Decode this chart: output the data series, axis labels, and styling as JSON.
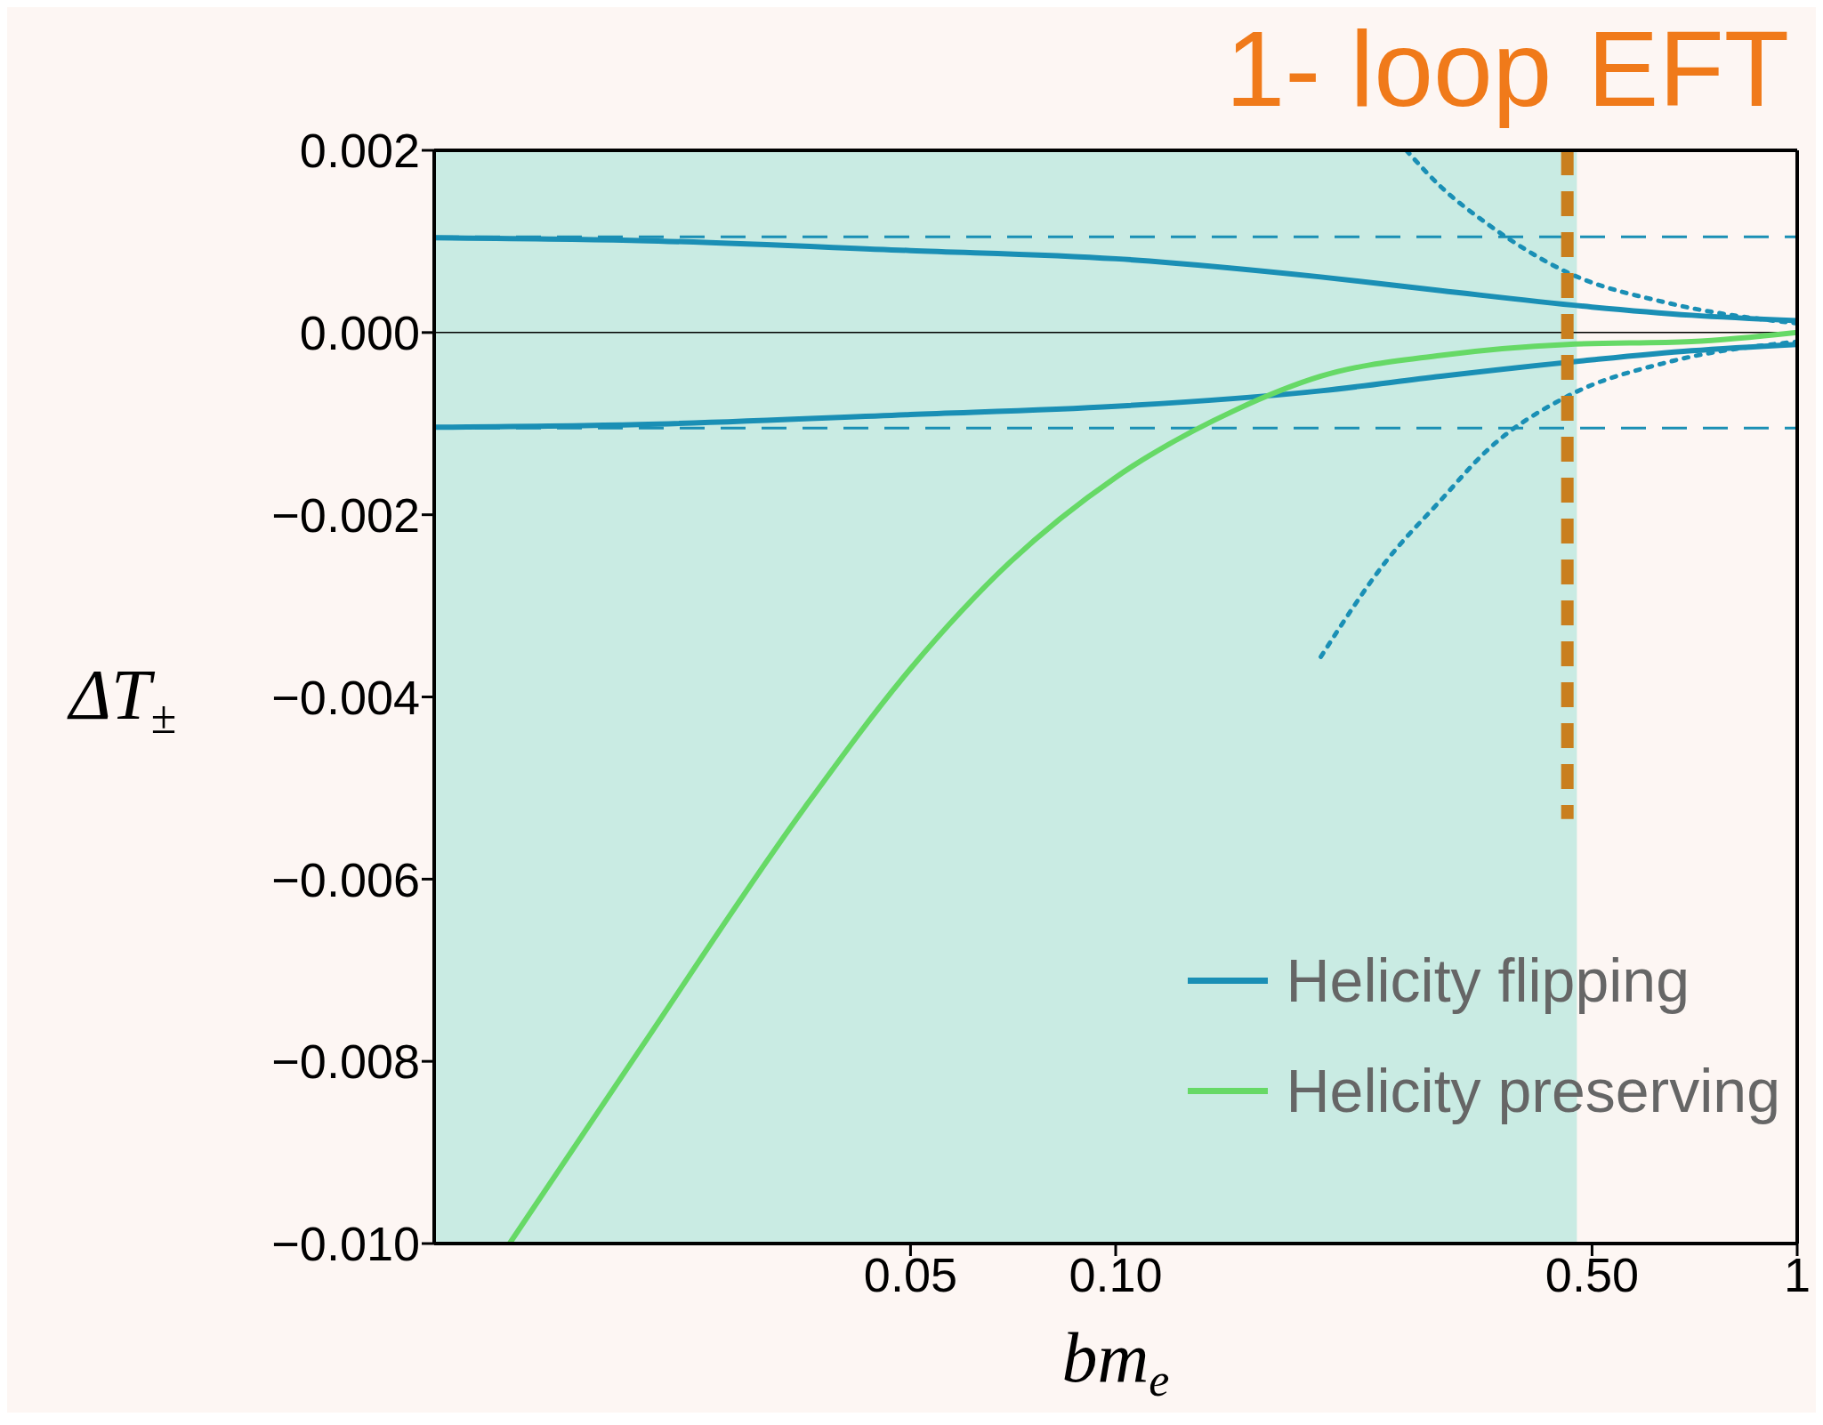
{
  "chart_data": {
    "type": "line",
    "xlabel": "bm$_{e}$",
    "ylabel": "ΔT$_{±}$",
    "annotations": [
      "1- loop",
      "EFT"
    ],
    "log": "x",
    "xlim": [
      0.01,
      1
    ],
    "ylim": [
      -0.01,
      0.002
    ],
    "xticks": [
      {
        "value": 0.05,
        "label": "0.05"
      },
      {
        "value": 0.1,
        "label": "0.10"
      },
      {
        "value": 0.5,
        "label": "0.50"
      },
      {
        "value": 1,
        "label": "1"
      }
    ],
    "yticks": [
      {
        "value": 0.002,
        "label": "0.002"
      },
      {
        "value": 0,
        "label": "0.000"
      },
      {
        "value": -0.002,
        "label": "−0.002"
      },
      {
        "value": -0.004,
        "label": "−0.004"
      },
      {
        "value": -0.006,
        "label": "−0.006"
      },
      {
        "value": -0.008,
        "label": "−0.008"
      },
      {
        "value": -0.01,
        "label": "−0.010"
      }
    ],
    "legend": "bottom right",
    "marker": "none",
    "bands": [
      {
        "axis": "x",
        "from": 0.01,
        "to": 0.475,
        "color": "#c9ebe3"
      }
    ],
    "ref_lines": [
      {
        "axis": "y",
        "value": 0.00105,
        "color": "#1a8fb5",
        "line_style": "dashed"
      },
      {
        "axis": "y",
        "value": -0.00105,
        "color": "#1a8fb5",
        "line_style": "dashed"
      },
      {
        "axis": "y",
        "value": 0,
        "color": "#000000",
        "line_style": "solid"
      }
    ],
    "series": [
      {
        "name": "Helicity flipping",
        "color": "#1a8fb5",
        "line_style": "solid",
        "x": [
          0.01,
          0.02,
          0.05,
          0.1,
          0.2,
          0.3,
          0.5,
          0.7,
          1
        ],
        "values": [
          0.00104,
          0.00101,
          0.0009,
          0.00081,
          0.00061,
          0.00046,
          0.00028,
          0.00019,
          0.00013
        ]
      },
      {
        "color": "#1a8fb5",
        "line_style": "solid",
        "x": [
          0.01,
          0.02,
          0.05,
          0.1,
          0.2,
          0.3,
          0.5,
          0.7,
          1
        ],
        "values": [
          -0.00104,
          -0.00101,
          -0.0009,
          -0.00081,
          -0.00064,
          -0.00048,
          -0.0003,
          -0.0002,
          -0.00013
        ]
      },
      {
        "name": "Helicity preserving",
        "color": "#66d966",
        "line_style": "solid",
        "x": [
          0.0129,
          0.02,
          0.035,
          0.05,
          0.07,
          0.1,
          0.15,
          0.2,
          0.3,
          0.46,
          0.7,
          1
        ],
        "values": [
          -0.01,
          -0.00788,
          -0.00521,
          -0.00369,
          -0.00252,
          -0.00159,
          -0.00085,
          -0.00048,
          -0.00025,
          -0.00013,
          -0.0001,
          0
        ]
      },
      {
        "color": "#1a8fb5",
        "line_style": "dotted",
        "x": [
          0.267,
          0.3,
          0.35,
          0.46,
          0.65,
          1
        ],
        "values": [
          0.002,
          0.0016,
          0.0012,
          0.00066,
          0.00032,
          0.0001
        ]
      },
      {
        "color": "#1a8fb5",
        "line_style": "dotted",
        "x": [
          0.2,
          0.25,
          0.3,
          0.35,
          0.46,
          0.65,
          1
        ],
        "values": [
          -0.00356,
          -0.0025,
          -0.00184,
          -0.0013,
          -0.0007,
          -0.00032,
          -0.0001
        ]
      },
      {
        "color": "#c97f1e",
        "line_style": "dashed",
        "x": [
          0.46,
          0.46
        ],
        "values": [
          0.002,
          -0.00534
        ]
      }
    ]
  }
}
